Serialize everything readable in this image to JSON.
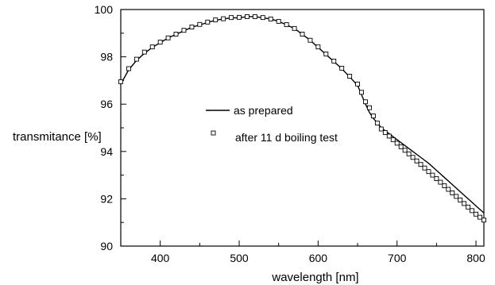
{
  "chart_data": {
    "type": "line",
    "title": "",
    "xlabel": "wavelength [nm]",
    "ylabel": "transmitance [%]",
    "xlim": [
      350,
      810
    ],
    "ylim": [
      90,
      100
    ],
    "xticks": [
      400,
      500,
      600,
      700,
      800
    ],
    "yticks": [
      90,
      92,
      94,
      96,
      98,
      100
    ],
    "grid": false,
    "legend_position": "center",
    "series": [
      {
        "name": "as prepared",
        "style": "line",
        "color": "#000000",
        "x": [
          350,
          360,
          370,
          380,
          390,
          400,
          410,
          420,
          430,
          440,
          450,
          460,
          470,
          480,
          490,
          500,
          510,
          520,
          530,
          540,
          550,
          560,
          570,
          580,
          590,
          600,
          610,
          620,
          630,
          640,
          650,
          655,
          660,
          665,
          670,
          680,
          690,
          700,
          710,
          720,
          730,
          740,
          750,
          760,
          770,
          780,
          790,
          800,
          810
        ],
        "y": [
          96.85,
          97.45,
          97.85,
          98.15,
          98.4,
          98.6,
          98.8,
          98.95,
          99.1,
          99.25,
          99.35,
          99.45,
          99.55,
          99.6,
          99.65,
          99.65,
          99.7,
          99.7,
          99.65,
          99.6,
          99.5,
          99.35,
          99.2,
          98.95,
          98.7,
          98.4,
          98.1,
          97.8,
          97.5,
          97.15,
          96.8,
          96.4,
          96.0,
          95.65,
          95.4,
          95.0,
          94.75,
          94.5,
          94.25,
          94.0,
          93.75,
          93.5,
          93.2,
          92.9,
          92.6,
          92.3,
          92.0,
          91.7,
          91.4
        ]
      },
      {
        "name": "after 11 d boiling test",
        "style": "markers",
        "marker": "open-square",
        "color": "#000000",
        "x": [
          350,
          360,
          370,
          380,
          390,
          400,
          410,
          420,
          430,
          440,
          450,
          460,
          470,
          480,
          490,
          500,
          510,
          520,
          530,
          540,
          550,
          560,
          570,
          580,
          590,
          600,
          610,
          620,
          630,
          640,
          650,
          655,
          660,
          665,
          670,
          675,
          680,
          685,
          690,
          695,
          700,
          705,
          710,
          715,
          720,
          725,
          730,
          735,
          740,
          745,
          750,
          755,
          760,
          765,
          770,
          775,
          780,
          785,
          790,
          795,
          800,
          805,
          810
        ],
        "y": [
          96.95,
          97.5,
          97.9,
          98.2,
          98.42,
          98.62,
          98.8,
          98.96,
          99.12,
          99.26,
          99.37,
          99.47,
          99.56,
          99.61,
          99.66,
          99.67,
          99.7,
          99.7,
          99.66,
          99.6,
          99.5,
          99.36,
          99.2,
          98.96,
          98.7,
          98.42,
          98.12,
          97.82,
          97.52,
          97.18,
          96.85,
          96.5,
          96.1,
          95.85,
          95.5,
          95.2,
          94.95,
          94.8,
          94.65,
          94.5,
          94.35,
          94.2,
          94.05,
          93.9,
          93.75,
          93.6,
          93.45,
          93.3,
          93.15,
          93.0,
          92.85,
          92.7,
          92.55,
          92.4,
          92.25,
          92.1,
          91.95,
          91.8,
          91.65,
          91.5,
          91.35,
          91.22,
          91.1
        ]
      }
    ]
  }
}
